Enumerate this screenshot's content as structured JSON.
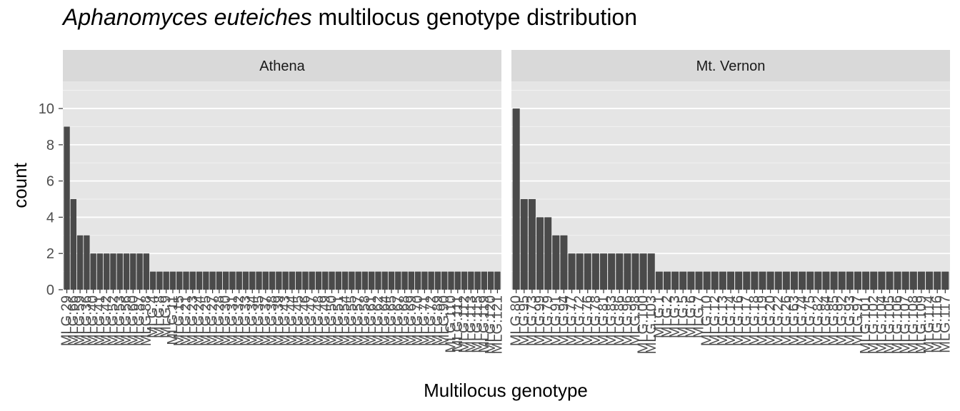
{
  "title": {
    "italic": "Aphanomyces euteiches",
    "rest": " multilocus genotype distribution"
  },
  "colors": {
    "panel_bg": "#e5e5e5",
    "grid": "#ffffff",
    "strip_bg": "#d9d9d9",
    "bar": "#4a4a4a",
    "tick_text": "#4d4d4d"
  },
  "chart_data": {
    "type": "bar",
    "title": "Aphanomyces euteiches multilocus genotype distribution",
    "xlabel": "Multilocus genotype",
    "ylabel": "count",
    "ylim": [
      0,
      11.5
    ],
    "yticks": [
      0,
      2,
      4,
      6,
      8,
      10
    ],
    "grid": true,
    "facets": [
      {
        "name": "Athena",
        "categories": [
          "MLG.29",
          "MLG.66",
          "MLG.59",
          "MLG.36",
          "MLG.40",
          "MLG.41",
          "MLG.42",
          "MLG.52",
          "MLG.53",
          "MLG.56",
          "MLG.60",
          "MLG.87",
          "MLG.88",
          "MLG.4",
          "MLG.8",
          "MLG.9",
          "MLG.11",
          "MLG.15",
          "MLG.21",
          "MLG.23",
          "MLG.24",
          "MLG.25",
          "MLG.27",
          "MLG.28",
          "MLG.30",
          "MLG.31",
          "MLG.32",
          "MLG.33",
          "MLG.34",
          "MLG.35",
          "MLG.37",
          "MLG.38",
          "MLG.39",
          "MLG.43",
          "MLG.44",
          "MLG.45",
          "MLG.46",
          "MLG.47",
          "MLG.48",
          "MLG.49",
          "MLG.50",
          "MLG.51",
          "MLG.54",
          "MLG.55",
          "MLG.57",
          "MLG.58",
          "MLG.61",
          "MLG.62",
          "MLG.64",
          "MLG.65",
          "MLG.67",
          "MLG.68",
          "MLG.69",
          "MLG.70",
          "MLG.71",
          "MLG.72",
          "MLG.89",
          "MLG.90",
          "MLG.110",
          "MLG.111",
          "MLG.112",
          "MLG.113",
          "MLG.115",
          "MLG.119",
          "MLG.120",
          "MLG.121"
        ],
        "values": [
          9,
          5,
          3,
          3,
          2,
          2,
          2,
          2,
          2,
          2,
          2,
          2,
          2,
          1,
          1,
          1,
          1,
          1,
          1,
          1,
          1,
          1,
          1,
          1,
          1,
          1,
          1,
          1,
          1,
          1,
          1,
          1,
          1,
          1,
          1,
          1,
          1,
          1,
          1,
          1,
          1,
          1,
          1,
          1,
          1,
          1,
          1,
          1,
          1,
          1,
          1,
          1,
          1,
          1,
          1,
          1,
          1,
          1,
          1,
          1,
          1,
          1,
          1,
          1,
          1,
          1
        ]
      },
      {
        "name": "Mt. Vernon",
        "categories": [
          "MLG.80",
          "MLG.95",
          "MLG.73",
          "MLG.99",
          "MLG.79",
          "MLG.91",
          "MLG.94",
          "MLG.77",
          "MLG.72",
          "MLG.76",
          "MLG.78",
          "MLG.81",
          "MLG.83",
          "MLG.86",
          "MLG.96",
          "MLG.98",
          "MLG.100",
          "MLG.103",
          "MLG.1",
          "MLG.2",
          "MLG.3",
          "MLG.5",
          "MLG.6",
          "MLG.7",
          "MLG.10",
          "MLG.12",
          "MLG.13",
          "MLG.14",
          "MLG.16",
          "MLG.17",
          "MLG.18",
          "MLG.19",
          "MLG.20",
          "MLG.22",
          "MLG.26",
          "MLG.63",
          "MLG.74",
          "MLG.75",
          "MLG.82",
          "MLG.84",
          "MLG.85",
          "MLG.92",
          "MLG.93",
          "MLG.97",
          "MLG.101",
          "MLG.102",
          "MLG.104",
          "MLG.105",
          "MLG.106",
          "MLG.107",
          "MLG.108",
          "MLG.109",
          "MLG.114",
          "MLG.116",
          "MLG.117"
        ],
        "values": [
          10,
          5,
          5,
          4,
          4,
          3,
          3,
          2,
          2,
          2,
          2,
          2,
          2,
          2,
          2,
          2,
          2,
          2,
          1,
          1,
          1,
          1,
          1,
          1,
          1,
          1,
          1,
          1,
          1,
          1,
          1,
          1,
          1,
          1,
          1,
          1,
          1,
          1,
          1,
          1,
          1,
          1,
          1,
          1,
          1,
          1,
          1,
          1,
          1,
          1,
          1,
          1,
          1,
          1,
          1
        ]
      }
    ]
  }
}
